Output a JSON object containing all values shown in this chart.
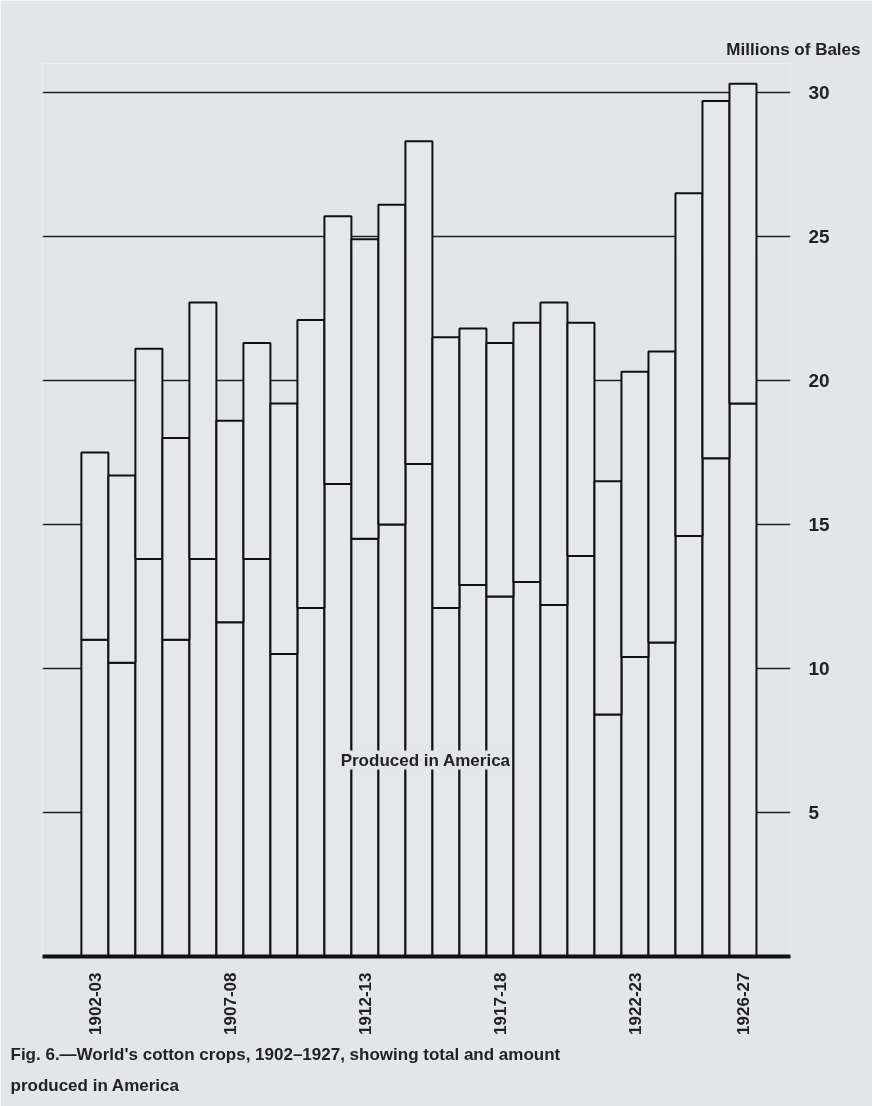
{
  "chart_data": {
    "type": "bar",
    "stacked": true,
    "title": "Fig. 6.—World's cotton crops, 1902–1927, showing total and amount produced in America",
    "ylabel": "Millions of Bales",
    "categories": [
      "1902-03",
      null,
      null,
      null,
      null,
      "1907-08",
      null,
      null,
      null,
      null,
      "1912-13",
      null,
      null,
      null,
      null,
      "1917-18",
      null,
      null,
      null,
      null,
      "1922-23",
      null,
      null,
      null,
      "1926-27"
    ],
    "series": [
      {
        "name": "Produced in America",
        "color": "#e6e7eb",
        "values": [
          11.0,
          10.2,
          13.8,
          11.0,
          13.8,
          11.6,
          13.8,
          10.5,
          12.1,
          16.4,
          14.5,
          15.0,
          17.1,
          12.1,
          12.9,
          12.5,
          13.0,
          12.2,
          13.9,
          8.4,
          10.4,
          10.9,
          14.6,
          17.3,
          19.2
        ]
      },
      {
        "color": "#e6e7eb",
        "values": [
          6.5,
          6.5,
          7.3,
          7.0,
          8.9,
          7.0,
          7.5,
          8.7,
          10.0,
          9.3,
          10.4,
          11.1,
          11.2,
          9.4,
          8.9,
          8.8,
          9.0,
          10.5,
          8.1,
          8.1,
          9.9,
          10.1,
          11.9,
          12.4,
          11.1
        ]
      }
    ],
    "ylim": [
      0,
      31
    ],
    "yticks": [
      5,
      10,
      15,
      20,
      25,
      30
    ],
    "grid": "y"
  }
}
